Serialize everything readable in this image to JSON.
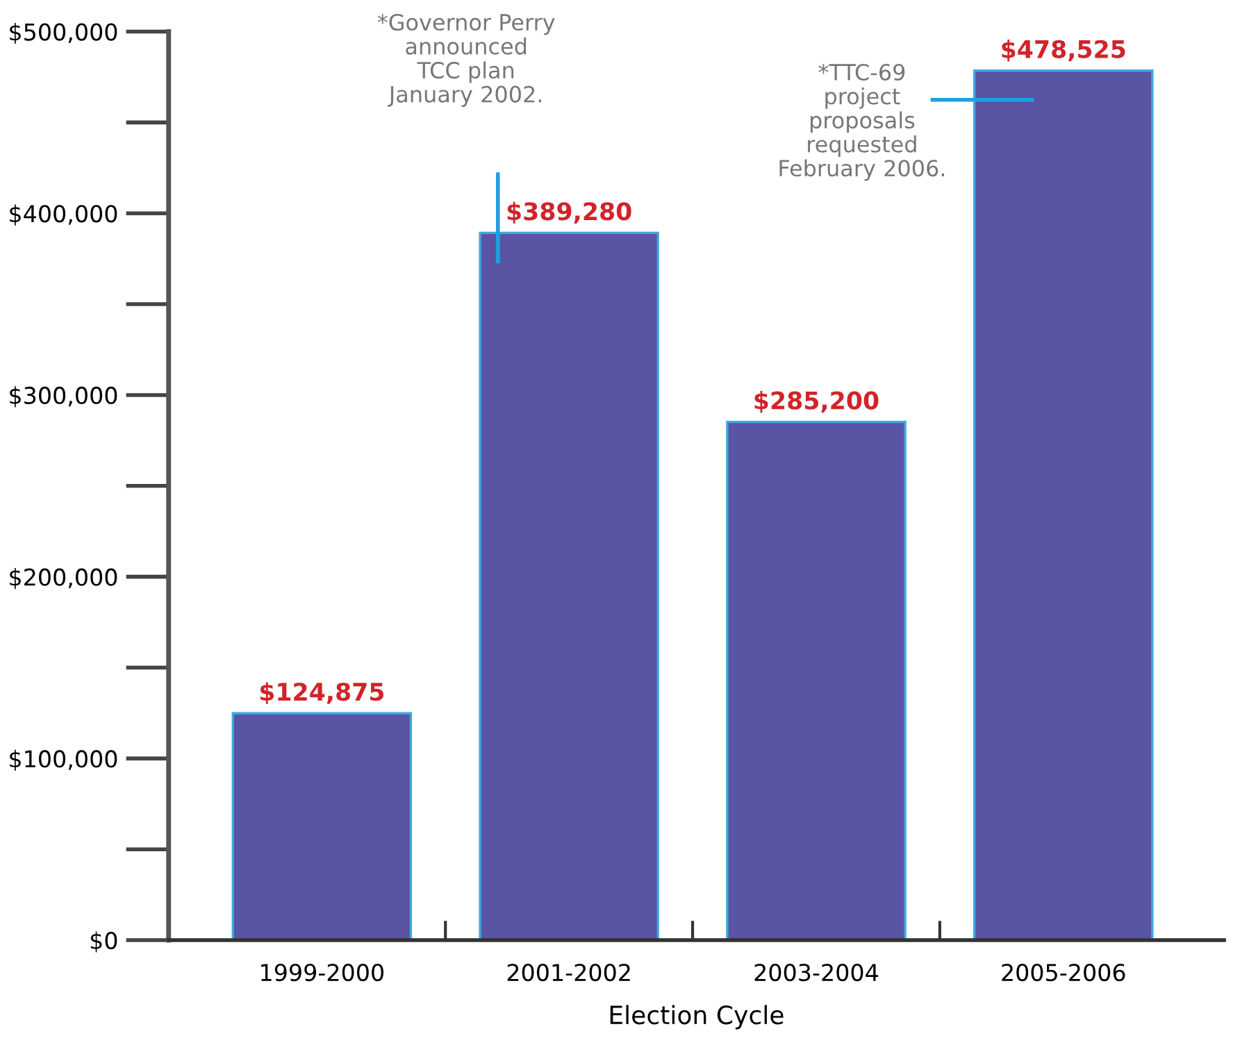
{
  "chart_data": {
    "type": "bar",
    "xlabel": "Election Cycle",
    "categories": [
      "1999-2000",
      "2001-2002",
      "2003-2004",
      "2005-2006"
    ],
    "values": [
      124875,
      389280,
      285200,
      478525
    ],
    "value_labels": [
      "$124,875",
      "$389,280",
      "$285,200",
      "$478,525"
    ],
    "color": "#5a54a4",
    "ylim": [
      0,
      500000
    ],
    "yticks": [
      {
        "value": 0,
        "label": "$0"
      },
      {
        "value": 100000,
        "label": "$100,000"
      },
      {
        "value": 200000,
        "label": "$200,000"
      },
      {
        "value": 300000,
        "label": "$300,000"
      },
      {
        "value": 400000,
        "label": "$400,000"
      },
      {
        "value": 500000,
        "label": "$500,000"
      }
    ],
    "annotations": [
      "*Governor Perry\nannounced\nTCC plan\nJanuary 2002.",
      "*TTC-69\nproject\nproposals\nrequested\nFebruary 2006."
    ],
    "grid": false
  }
}
